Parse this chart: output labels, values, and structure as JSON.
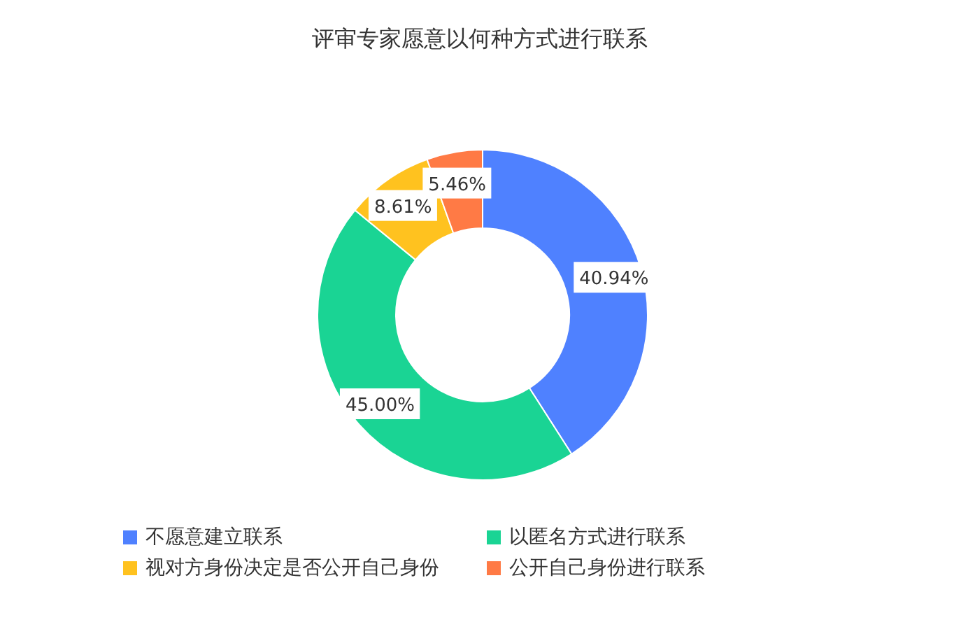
{
  "chart_data": {
    "type": "donut",
    "title": "评审专家愿意以何种方式进行联系",
    "categories": [
      "不愿意建立联系",
      "以匿名方式进行联系",
      "视对方身份决定是否公开自己身份",
      "公开自己身份进行联系"
    ],
    "values": [
      40.94,
      45.0,
      8.61,
      5.46
    ],
    "colors": [
      "#4f81ff",
      "#1ad494",
      "#ffc21f",
      "#ff7a45"
    ],
    "value_labels": [
      "40.94%",
      "45.00%",
      "8.61%",
      "5.46%"
    ],
    "legend": "bottom"
  }
}
